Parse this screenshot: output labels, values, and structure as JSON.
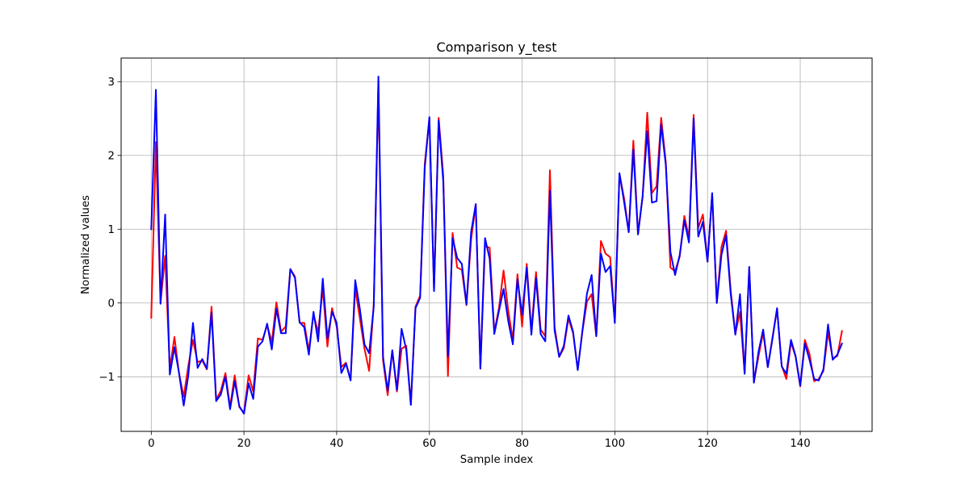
{
  "chart_data": {
    "type": "line",
    "title": "Comparison y_test",
    "xlabel": "Sample index",
    "ylabel": "Normalized values",
    "xlim": [
      -6.5,
      155.5
    ],
    "ylim": [
      -1.74,
      3.32
    ],
    "grid": true,
    "legend": "none",
    "x_ticks": [
      0,
      20,
      40,
      60,
      80,
      100,
      120,
      140
    ],
    "x_tick_labels": [
      "0",
      "20",
      "40",
      "60",
      "80",
      "100",
      "120",
      "140"
    ],
    "y_ticks": [
      -1,
      0,
      1,
      2,
      3
    ],
    "y_tick_labels": [
      "−1",
      "0",
      "1",
      "2",
      "3"
    ],
    "series": [
      {
        "color": "#ff0000",
        "values": [
          -0.2,
          2.18,
          0.0,
          0.64,
          -0.9,
          -0.46,
          -0.96,
          -1.27,
          -0.85,
          -0.5,
          -0.8,
          -0.78,
          -0.9,
          -0.05,
          -1.31,
          -1.19,
          -0.95,
          -1.41,
          -0.98,
          -1.41,
          -1.49,
          -0.98,
          -1.2,
          -0.48,
          -0.5,
          -0.3,
          -0.53,
          0.01,
          -0.39,
          -0.32,
          0.46,
          0.36,
          -0.27,
          -0.27,
          -0.65,
          -0.15,
          -0.4,
          0.2,
          -0.59,
          -0.07,
          -0.32,
          -0.87,
          -0.81,
          -1.04,
          0.2,
          -0.21,
          -0.62,
          -0.92,
          -0.01,
          2.98,
          -0.78,
          -1.25,
          -0.65,
          -1.2,
          -0.62,
          -0.58,
          -1.38,
          -0.05,
          0.1,
          1.89,
          2.5,
          0.18,
          2.51,
          1.72,
          -0.99,
          0.95,
          0.48,
          0.45,
          -0.03,
          0.86,
          1.34,
          -0.89,
          0.77,
          0.75,
          -0.39,
          -0.07,
          0.44,
          -0.1,
          -0.5,
          0.39,
          -0.32,
          0.53,
          -0.38,
          0.42,
          -0.36,
          -0.45,
          1.8,
          -0.32,
          -0.73,
          -0.61,
          -0.21,
          -0.41,
          -0.9,
          -0.39,
          0.02,
          0.12,
          -0.45,
          0.84,
          0.67,
          0.62,
          -0.27,
          1.75,
          1.42,
          0.96,
          2.2,
          0.93,
          1.44,
          2.58,
          1.49,
          1.58,
          2.51,
          1.91,
          0.48,
          0.43,
          0.63,
          1.18,
          0.88,
          2.55,
          1.02,
          1.2,
          0.56,
          1.48,
          0.0,
          0.76,
          0.98,
          0.17,
          -0.42,
          -0.12,
          -0.95,
          0.48,
          -1.07,
          -0.72,
          -0.4,
          -0.87,
          -0.47,
          -0.08,
          -0.85,
          -1.03,
          -0.53,
          -0.73,
          -1.13,
          -0.5,
          -0.69,
          -1.06,
          -1.03,
          -0.92,
          -0.4,
          -0.75,
          -0.72,
          -0.38
        ]
      },
      {
        "color": "#0000ff",
        "values": [
          1.0,
          2.89,
          -0.01,
          1.2,
          -0.97,
          -0.6,
          -0.95,
          -1.39,
          -0.98,
          -0.27,
          -0.88,
          -0.76,
          -0.89,
          -0.13,
          -1.33,
          -1.24,
          -1.0,
          -1.44,
          -1.06,
          -1.4,
          -1.5,
          -1.09,
          -1.3,
          -0.59,
          -0.52,
          -0.28,
          -0.63,
          -0.08,
          -0.41,
          -0.41,
          0.46,
          0.34,
          -0.26,
          -0.33,
          -0.7,
          -0.12,
          -0.52,
          0.33,
          -0.48,
          -0.12,
          -0.27,
          -0.95,
          -0.82,
          -1.05,
          0.31,
          -0.08,
          -0.56,
          -0.68,
          -0.05,
          3.07,
          -0.73,
          -1.19,
          -0.64,
          -1.18,
          -0.35,
          -0.63,
          -1.38,
          -0.07,
          0.07,
          1.83,
          2.52,
          0.16,
          2.47,
          1.64,
          -0.72,
          0.88,
          0.61,
          0.53,
          -0.02,
          0.96,
          1.34,
          -0.89,
          0.88,
          0.6,
          -0.42,
          -0.11,
          0.19,
          -0.24,
          -0.56,
          0.32,
          -0.16,
          0.48,
          -0.43,
          0.34,
          -0.42,
          -0.52,
          1.52,
          -0.37,
          -0.73,
          -0.58,
          -0.17,
          -0.39,
          -0.91,
          -0.38,
          0.13,
          0.38,
          -0.45,
          0.67,
          0.42,
          0.5,
          -0.27,
          1.76,
          1.37,
          0.96,
          2.08,
          0.93,
          1.45,
          2.33,
          1.36,
          1.38,
          2.42,
          1.87,
          0.69,
          0.38,
          0.65,
          1.12,
          0.82,
          2.5,
          0.9,
          1.1,
          0.56,
          1.49,
          0.0,
          0.65,
          0.92,
          0.12,
          -0.43,
          0.12,
          -0.96,
          0.49,
          -1.08,
          -0.66,
          -0.36,
          -0.87,
          -0.49,
          -0.07,
          -0.86,
          -0.96,
          -0.5,
          -0.72,
          -1.12,
          -0.55,
          -0.77,
          -1.03,
          -1.05,
          -0.9,
          -0.29,
          -0.77,
          -0.7,
          -0.55
        ]
      }
    ]
  }
}
